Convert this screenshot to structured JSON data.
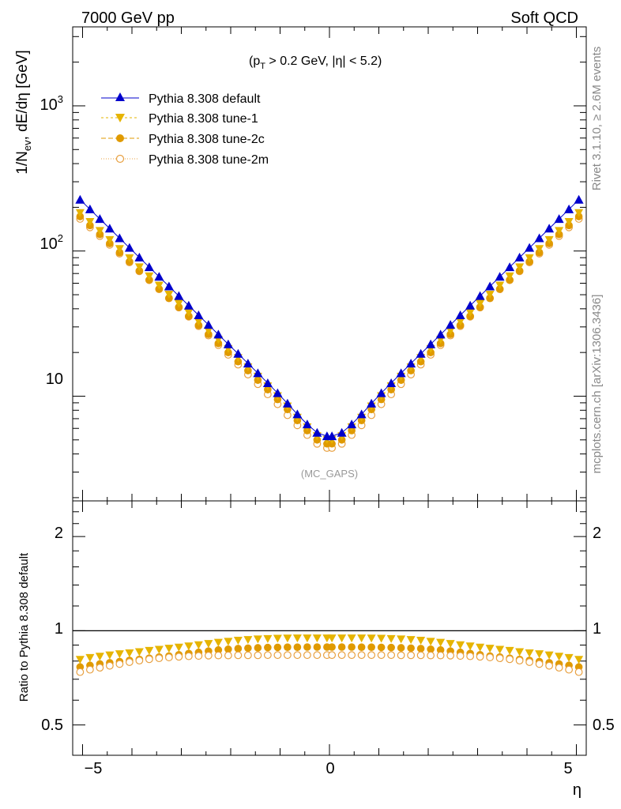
{
  "header": {
    "left": "7000 GeV pp",
    "right": "Soft QCD"
  },
  "cuts_label": "(p_T > 0.2 GeV, |η| < 5.2)",
  "watermark": "(MC_GAPS)",
  "side_text": {
    "rivet": "Rivet 3.1.10, ≥ 2.6M events",
    "source": "mcplots.cern.ch [arXiv:1306.3436]"
  },
  "main_ylabel": "1/N_ev, dE/dη [GeV]",
  "ratio_ylabel": "Ratio to Pythia 8.308 default",
  "xlabel": "η",
  "main_ticks": [
    "10",
    "10²",
    "10³"
  ],
  "ratio_ticks": [
    "0.5",
    "1",
    "2"
  ],
  "x_ticks": [
    "−5",
    "0",
    "5"
  ],
  "colors": {
    "default": "#0000cc",
    "tune1": "#e6b400",
    "tune2c": "#e09a00",
    "tune2m": "#e8a040"
  },
  "chart_data": [
    {
      "type": "scatter",
      "panel": "main",
      "x_axis": "η",
      "y_axis": "1/N_ev, dE/dη [GeV]",
      "log_y": true,
      "xlim": [
        -5.2,
        5.2
      ],
      "ylim": [
        1.9,
        3500
      ],
      "legend_position": "top-left",
      "x": [
        -5.05,
        -4.85,
        -4.65,
        -4.45,
        -4.25,
        -4.05,
        -3.85,
        -3.65,
        -3.45,
        -3.25,
        -3.05,
        -2.85,
        -2.65,
        -2.45,
        -2.25,
        -2.05,
        -1.85,
        -1.65,
        -1.45,
        -1.25,
        -1.05,
        -0.85,
        -0.65,
        -0.45,
        -0.25,
        -0.05,
        0.05,
        0.25,
        0.45,
        0.65,
        0.85,
        1.05,
        1.25,
        1.45,
        1.65,
        1.85,
        2.05,
        2.25,
        2.45,
        2.65,
        2.85,
        3.05,
        3.25,
        3.45,
        3.65,
        3.85,
        4.05,
        4.25,
        4.45,
        4.65,
        4.85,
        5.05
      ],
      "series": [
        {
          "name": "Pythia 8.308 default",
          "marker": "triangle-up",
          "values": [
            225.8,
            193.8,
            166.3,
            142.8,
            122.6,
            105.2,
            90.3,
            77.5,
            66.5,
            57.1,
            49.0,
            42.1,
            36.1,
            31.0,
            26.6,
            22.8,
            19.6,
            16.8,
            14.4,
            12.3,
            10.5,
            8.9,
            7.5,
            6.4,
            5.6,
            5.3,
            5.3,
            5.6,
            6.4,
            7.5,
            8.9,
            10.5,
            12.3,
            14.4,
            16.8,
            19.6,
            22.8,
            26.6,
            31.0,
            36.1,
            42.1,
            49.0,
            57.1,
            66.5,
            77.5,
            90.3,
            105.2,
            122.6,
            142.8,
            166.3,
            193.8,
            225.8
          ]
        },
        {
          "name": "Pythia 8.308 tune-1",
          "marker": "triangle-down",
          "values": [
            182.3,
            158.5,
            137.4,
            119.0,
            103.1,
            89.1,
            77.2,
            66.8,
            57.8,
            50.0,
            43.3,
            37.5,
            32.5,
            28.1,
            24.4,
            21.1,
            18.3,
            15.8,
            13.6,
            11.7,
            10.0,
            8.5,
            7.1,
            6.1,
            5.3,
            5.0,
            5.0,
            5.3,
            6.1,
            7.1,
            8.5,
            10.0,
            11.7,
            13.6,
            15.8,
            18.3,
            21.1,
            24.4,
            28.1,
            32.5,
            37.5,
            43.3,
            50.0,
            57.8,
            66.8,
            77.2,
            89.1,
            103.1,
            119.0,
            137.4,
            158.5,
            182.3
          ]
        },
        {
          "name": "Pythia 8.308 tune-2c",
          "marker": "circle-filled",
          "values": [
            172.9,
            150.1,
            130.2,
            112.8,
            97.7,
            84.5,
            73.1,
            63.3,
            54.8,
            47.4,
            41.1,
            35.6,
            30.8,
            26.7,
            23.1,
            20.0,
            17.3,
            15.0,
            12.9,
            11.1,
            9.5,
            8.1,
            6.8,
            5.8,
            5.0,
            4.7,
            4.7,
            5.0,
            5.8,
            6.8,
            8.1,
            9.5,
            11.1,
            12.9,
            15.0,
            17.3,
            20.0,
            23.1,
            26.7,
            30.8,
            35.6,
            41.1,
            47.4,
            54.8,
            63.3,
            73.1,
            84.5,
            97.7,
            112.8,
            130.2,
            150.1,
            172.9
          ]
        },
        {
          "name": "Pythia 8.308 tune-2m",
          "marker": "circle-open",
          "values": [
            166.6,
            145.5,
            126.8,
            110.4,
            96.0,
            83.5,
            72.5,
            62.9,
            54.5,
            47.2,
            40.8,
            35.3,
            30.4,
            26.2,
            22.5,
            19.3,
            16.5,
            14.1,
            12.1,
            10.3,
            8.8,
            7.4,
            6.3,
            5.4,
            4.7,
            4.4,
            4.4,
            4.7,
            5.4,
            6.3,
            7.4,
            8.8,
            10.3,
            12.1,
            14.1,
            16.5,
            19.3,
            22.5,
            26.2,
            30.4,
            35.3,
            40.8,
            47.2,
            54.5,
            62.9,
            72.5,
            83.5,
            96.0,
            110.4,
            126.8,
            145.5,
            166.6
          ]
        }
      ]
    },
    {
      "type": "scatter",
      "panel": "ratio",
      "x_axis": "η",
      "y_axis": "Ratio to Pythia 8.308 default",
      "log_y": true,
      "xlim": [
        -5.2,
        5.2
      ],
      "ylim": [
        0.4,
        2.6
      ],
      "reference_line": 1.0,
      "x": [
        -5.05,
        -4.85,
        -4.65,
        -4.45,
        -4.25,
        -4.05,
        -3.85,
        -3.65,
        -3.45,
        -3.25,
        -3.05,
        -2.85,
        -2.65,
        -2.45,
        -2.25,
        -2.05,
        -1.85,
        -1.65,
        -1.45,
        -1.25,
        -1.05,
        -0.85,
        -0.65,
        -0.45,
        -0.25,
        -0.05,
        0.05,
        0.25,
        0.45,
        0.65,
        0.85,
        1.05,
        1.25,
        1.45,
        1.65,
        1.85,
        2.05,
        2.25,
        2.45,
        2.65,
        2.85,
        3.05,
        3.25,
        3.45,
        3.65,
        3.85,
        4.05,
        4.25,
        4.45,
        4.65,
        4.85,
        5.05
      ],
      "series": [
        {
          "name": "Pythia 8.308 tune-1",
          "marker": "triangle-down",
          "values": [
            0.807,
            0.818,
            0.826,
            0.834,
            0.841,
            0.847,
            0.854,
            0.862,
            0.869,
            0.876,
            0.883,
            0.891,
            0.899,
            0.907,
            0.915,
            0.922,
            0.929,
            0.934,
            0.938,
            0.941,
            0.943,
            0.944,
            0.945,
            0.945,
            0.945,
            0.945,
            0.945,
            0.945,
            0.945,
            0.945,
            0.944,
            0.943,
            0.941,
            0.938,
            0.934,
            0.929,
            0.922,
            0.915,
            0.907,
            0.899,
            0.891,
            0.883,
            0.876,
            0.869,
            0.862,
            0.854,
            0.847,
            0.841,
            0.834,
            0.826,
            0.818,
            0.807
          ]
        },
        {
          "name": "Pythia 8.308 tune-2c",
          "marker": "circle-filled",
          "values": [
            0.766,
            0.775,
            0.783,
            0.79,
            0.797,
            0.804,
            0.81,
            0.817,
            0.824,
            0.83,
            0.838,
            0.846,
            0.853,
            0.861,
            0.868,
            0.873,
            0.877,
            0.88,
            0.882,
            0.884,
            0.885,
            0.886,
            0.886,
            0.887,
            0.887,
            0.887,
            0.887,
            0.887,
            0.887,
            0.886,
            0.886,
            0.885,
            0.884,
            0.882,
            0.88,
            0.877,
            0.873,
            0.868,
            0.861,
            0.853,
            0.846,
            0.838,
            0.83,
            0.824,
            0.817,
            0.81,
            0.804,
            0.797,
            0.79,
            0.783,
            0.775,
            0.766
          ]
        },
        {
          "name": "Pythia 8.308 tune-2m",
          "marker": "circle-open",
          "values": [
            0.738,
            0.751,
            0.762,
            0.773,
            0.783,
            0.794,
            0.803,
            0.811,
            0.817,
            0.822,
            0.826,
            0.829,
            0.831,
            0.833,
            0.834,
            0.834,
            0.835,
            0.835,
            0.835,
            0.836,
            0.836,
            0.836,
            0.836,
            0.836,
            0.836,
            0.836,
            0.836,
            0.836,
            0.836,
            0.836,
            0.836,
            0.836,
            0.836,
            0.835,
            0.835,
            0.835,
            0.834,
            0.834,
            0.833,
            0.831,
            0.829,
            0.826,
            0.822,
            0.817,
            0.811,
            0.803,
            0.794,
            0.783,
            0.773,
            0.762,
            0.751,
            0.738
          ]
        }
      ]
    }
  ]
}
